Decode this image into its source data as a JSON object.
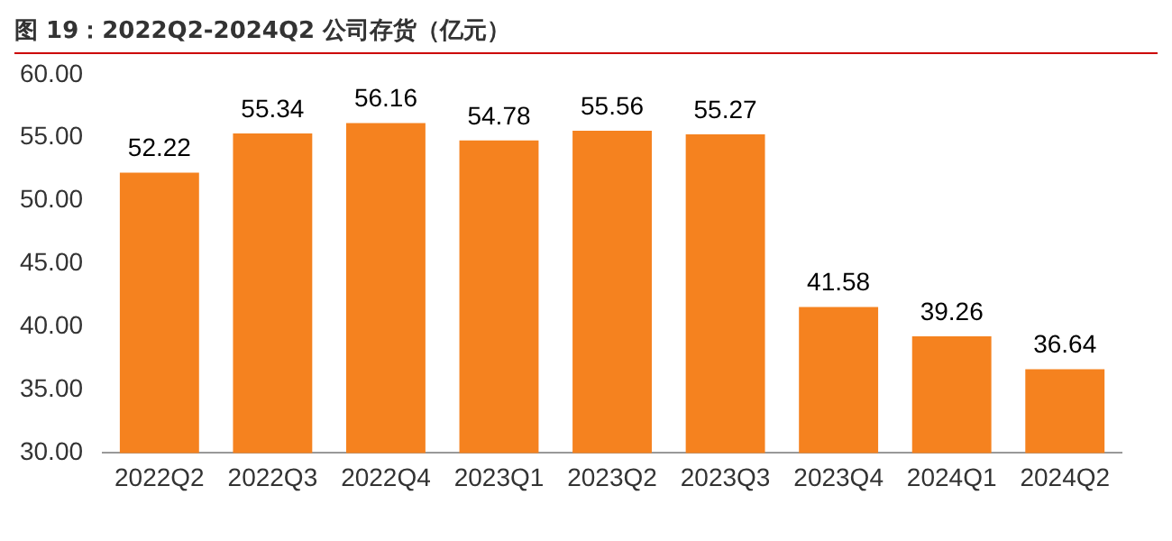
{
  "chart_data": {
    "type": "bar",
    "title": "图 19：2022Q2-2024Q2 公司存货（亿元）",
    "categories": [
      "2022Q2",
      "2022Q3",
      "2022Q4",
      "2023Q1",
      "2023Q2",
      "2023Q3",
      "2023Q4",
      "2024Q1",
      "2024Q2"
    ],
    "values": [
      52.22,
      55.34,
      56.16,
      54.78,
      55.56,
      55.27,
      41.58,
      39.26,
      36.64
    ],
    "color": "#f5821f",
    "ylim": [
      30,
      60
    ],
    "yticks": [
      {
        "value": 30,
        "label": "30.00"
      },
      {
        "value": 35,
        "label": "35.00"
      },
      {
        "value": 40,
        "label": "40.00"
      },
      {
        "value": 45,
        "label": "45.00"
      },
      {
        "value": 50,
        "label": "50.00"
      },
      {
        "value": 55,
        "label": "55.00"
      },
      {
        "value": 60,
        "label": "60.00"
      }
    ],
    "data_labels": true,
    "grid": false,
    "legend": false
  }
}
